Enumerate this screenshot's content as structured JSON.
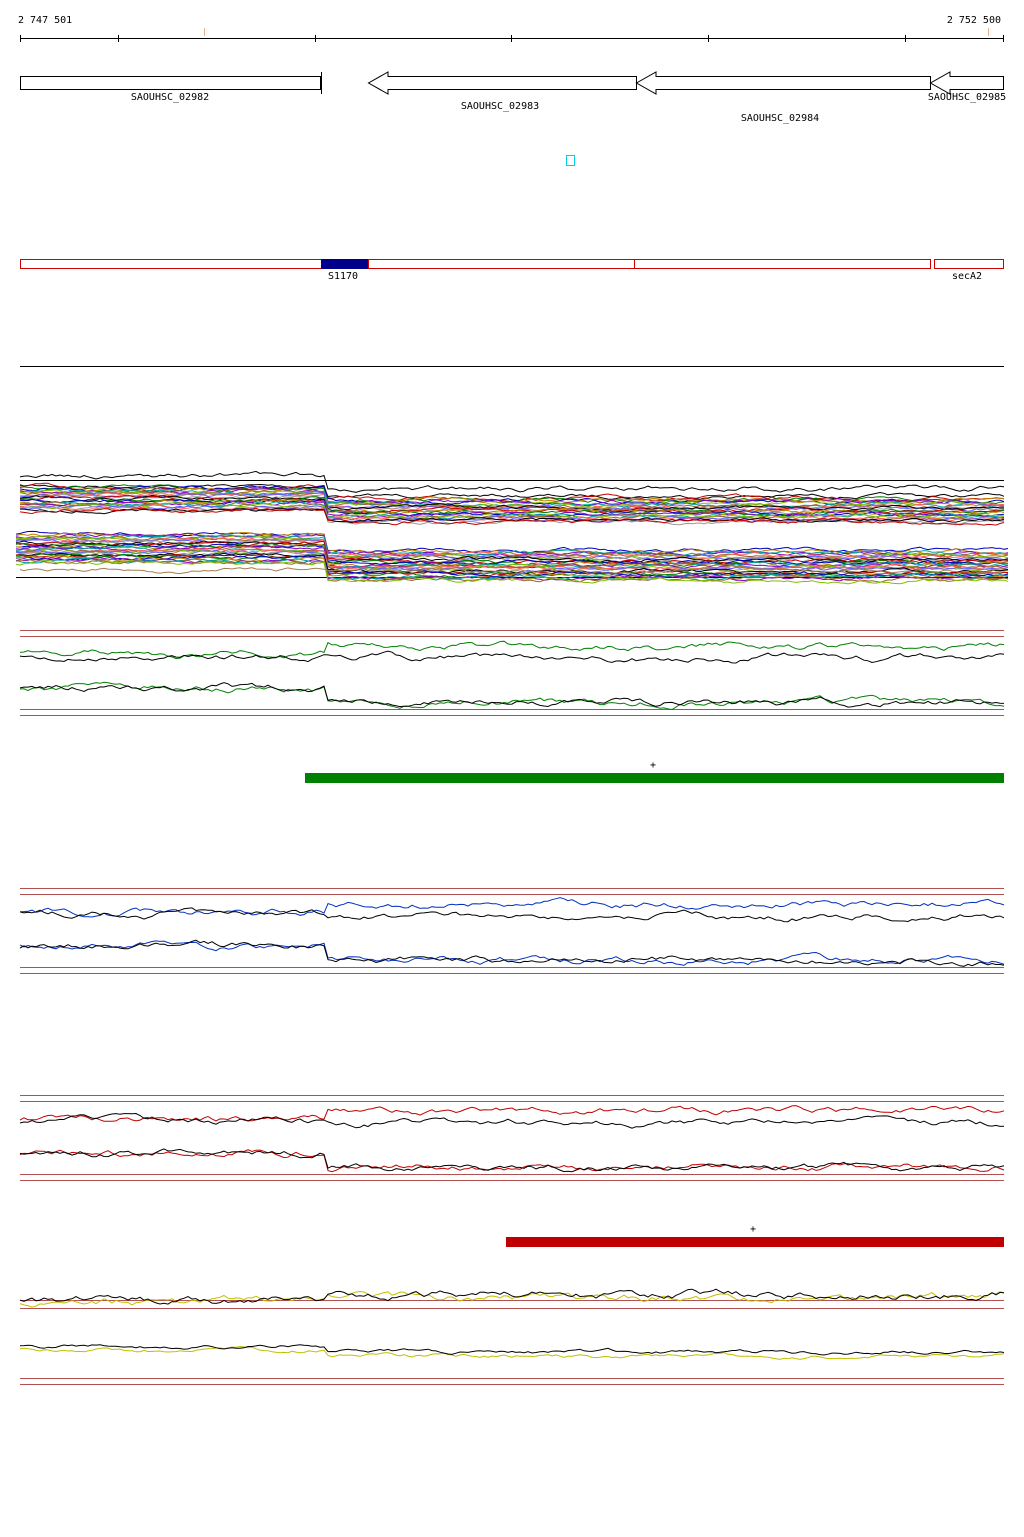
{
  "ruler": {
    "start": "2 747 501",
    "end": "2 752 500"
  },
  "genes": [
    {
      "label": "SAOUHSC_02982"
    },
    {
      "label": "SAOUHSC_02983"
    },
    {
      "label": "SAOUHSC_02984"
    },
    {
      "label": "SAOUHSC_02985"
    }
  ],
  "features": [
    {
      "label": "S1170"
    },
    {
      "label": "secA2"
    }
  ],
  "segments": [
    {
      "label": "+"
    },
    {
      "label": "+"
    }
  ]
}
